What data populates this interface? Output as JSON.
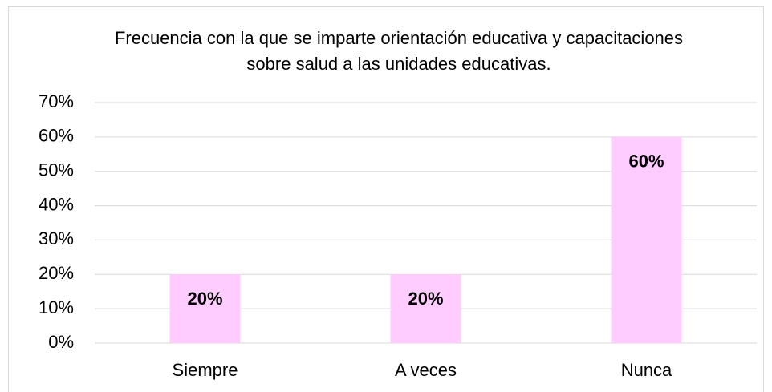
{
  "chart_data": {
    "type": "bar",
    "title": "Frecuencia con la que se imparte orientación educativa y capacitaciones sobre salud a las unidades educativas.",
    "categories": [
      "Siempre",
      "A veces",
      "Nunca"
    ],
    "values": [
      20,
      20,
      60
    ],
    "value_labels": [
      "20%",
      "20%",
      "60%"
    ],
    "color": "#ffccff",
    "ylim": [
      0,
      70
    ],
    "yticks": [
      {
        "value": 0,
        "label": "0%"
      },
      {
        "value": 10,
        "label": "10%"
      },
      {
        "value": 20,
        "label": "20%"
      },
      {
        "value": 30,
        "label": "30%"
      },
      {
        "value": 40,
        "label": "40%"
      },
      {
        "value": 50,
        "label": "50%"
      },
      {
        "value": 60,
        "label": "60%"
      },
      {
        "value": 70,
        "label": "70%"
      }
    ],
    "grid": true
  }
}
